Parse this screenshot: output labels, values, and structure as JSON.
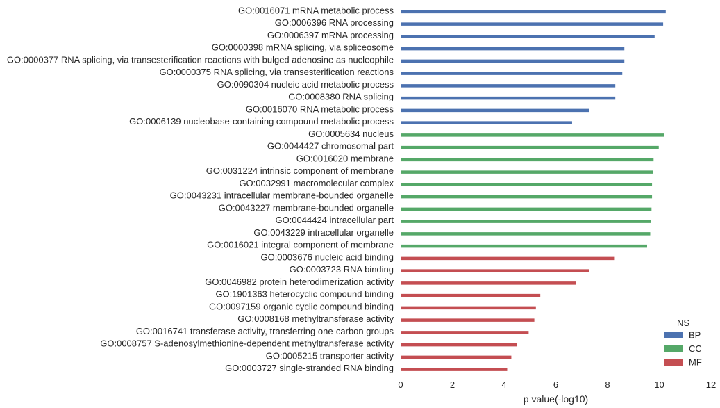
{
  "chart_data": {
    "type": "bar",
    "orientation": "horizontal",
    "title": "",
    "xlabel": "p value(-log10)",
    "ylabel": "",
    "xlim": [
      0,
      12
    ],
    "xticks": [
      0,
      2,
      4,
      6,
      8,
      10,
      12
    ],
    "grid": false,
    "legend": {
      "title": "NS",
      "placement": "bottom-right",
      "entries": [
        {
          "name": "BP",
          "color": "#4c72b0"
        },
        {
          "name": "CC",
          "color": "#55a868"
        },
        {
          "name": "MF",
          "color": "#c44e52"
        }
      ]
    },
    "categories": [
      {
        "label": "GO:0016071 mRNA metabolic process",
        "ns": "BP",
        "value": 10.25
      },
      {
        "label": "GO:0006396 RNA processing",
        "ns": "BP",
        "value": 10.15
      },
      {
        "label": "GO:0006397 mRNA processing",
        "ns": "BP",
        "value": 9.82
      },
      {
        "label": "GO:0000398 mRNA splicing, via spliceosome",
        "ns": "BP",
        "value": 8.65
      },
      {
        "label": "GO:0000377 RNA splicing, via transesterification reactions with bulged adenosine as nucleophile",
        "ns": "BP",
        "value": 8.65
      },
      {
        "label": "GO:0000375 RNA splicing, via transesterification reactions",
        "ns": "BP",
        "value": 8.57
      },
      {
        "label": "GO:0090304 nucleic acid metabolic process",
        "ns": "BP",
        "value": 8.3
      },
      {
        "label": "GO:0008380 RNA splicing",
        "ns": "BP",
        "value": 8.3
      },
      {
        "label": "GO:0016070 RNA metabolic process",
        "ns": "BP",
        "value": 7.3
      },
      {
        "label": "GO:0006139 nucleobase-containing compound metabolic process",
        "ns": "BP",
        "value": 6.63
      },
      {
        "label": "GO:0005634 nucleus",
        "ns": "CC",
        "value": 10.2
      },
      {
        "label": "GO:0044427 chromosomal part",
        "ns": "CC",
        "value": 9.98
      },
      {
        "label": "GO:0016020 membrane",
        "ns": "CC",
        "value": 9.78
      },
      {
        "label": "GO:0031224 intrinsic component of membrane",
        "ns": "CC",
        "value": 9.75
      },
      {
        "label": "GO:0032991 macromolecular complex",
        "ns": "CC",
        "value": 9.72
      },
      {
        "label": "GO:0043231 intracellular membrane-bounded organelle",
        "ns": "CC",
        "value": 9.72
      },
      {
        "label": "GO:0043227 membrane-bounded organelle",
        "ns": "CC",
        "value": 9.7
      },
      {
        "label": "GO:0044424 intracellular part",
        "ns": "CC",
        "value": 9.68
      },
      {
        "label": "GO:0043229 intracellular organelle",
        "ns": "CC",
        "value": 9.65
      },
      {
        "label": "GO:0016021 integral component of membrane",
        "ns": "CC",
        "value": 9.53
      },
      {
        "label": "GO:0003676 nucleic acid binding",
        "ns": "MF",
        "value": 8.28
      },
      {
        "label": "GO:0003723 RNA binding",
        "ns": "MF",
        "value": 7.28
      },
      {
        "label": "GO:0046982 protein heterodimerization activity",
        "ns": "MF",
        "value": 6.78
      },
      {
        "label": "GO:1901363 heterocyclic compound binding",
        "ns": "MF",
        "value": 5.4
      },
      {
        "label": "GO:0097159 organic cyclic compound binding",
        "ns": "MF",
        "value": 5.23
      },
      {
        "label": "GO:0008168 methyltransferase activity",
        "ns": "MF",
        "value": 5.17
      },
      {
        "label": "GO:0016741 transferase activity, transferring one-carbon groups",
        "ns": "MF",
        "value": 4.95
      },
      {
        "label": "GO:0008757 S-adenosylmethionine-dependent methyltransferase activity",
        "ns": "MF",
        "value": 4.5
      },
      {
        "label": "GO:0005215 transporter activity",
        "ns": "MF",
        "value": 4.28
      },
      {
        "label": "GO:0003727 single-stranded RNA binding",
        "ns": "MF",
        "value": 4.12
      }
    ]
  }
}
